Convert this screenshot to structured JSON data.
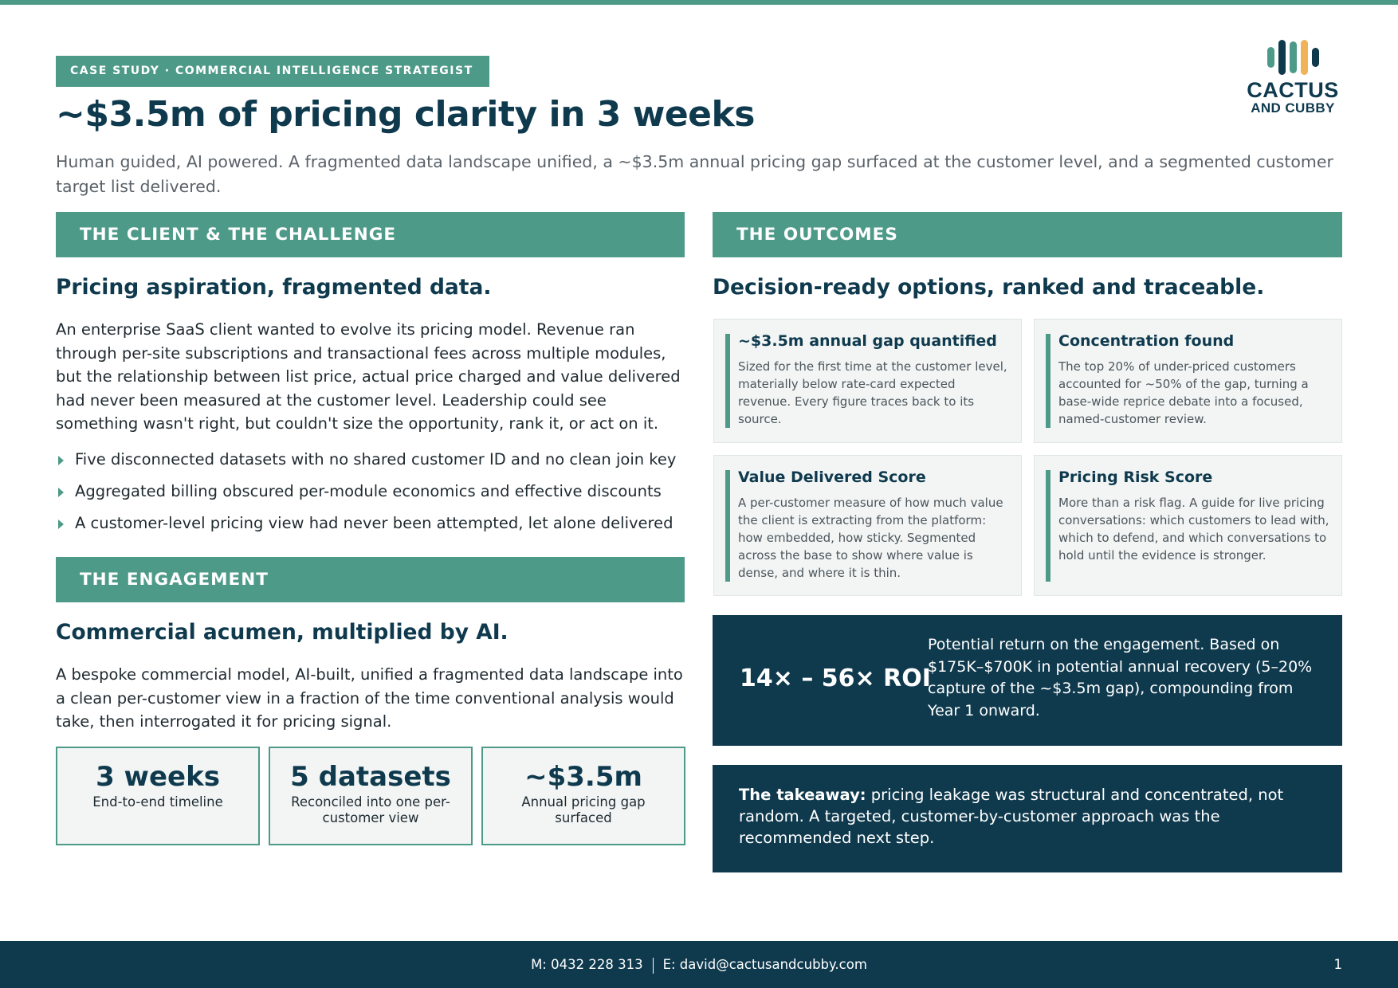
{
  "header": {
    "eyebrow": "CASE STUDY · COMMERCIAL INTELLIGENCE STRATEGIST",
    "title": "~$3.5m of pricing clarity in 3 weeks",
    "subtitle": "Human guided, AI powered. A fragmented data landscape unified, a ~$3.5m annual pricing gap surfaced at the customer level, and a segmented customer target list delivered."
  },
  "logo": {
    "line1": "CACTUS",
    "line2": "AND CUBBY",
    "colors": [
      "#4e9a88",
      "#0f3a4e",
      "#f0b35a"
    ]
  },
  "client": {
    "band": "THE CLIENT & THE CHALLENGE",
    "heading": "Pricing aspiration, fragmented data.",
    "body": "An enterprise SaaS client wanted to evolve its pricing model. Revenue ran through per-site subscriptions and transactional fees across multiple modules, but the relationship between list price, actual price charged and value delivered had never been measured at the customer level. Leadership could see something wasn't right, but couldn't size the opportunity, rank it, or act on it.",
    "bullets": [
      "Five disconnected datasets with no shared customer ID and no clean join key",
      "Aggregated billing obscured per-module economics and effective discounts",
      "A customer-level pricing view had never been attempted, let alone delivered"
    ]
  },
  "engagement": {
    "band": "THE ENGAGEMENT",
    "heading": "Commercial acumen, multiplied by AI.",
    "body": "A bespoke commercial model, AI-built, unified a fragmented data landscape into a clean per-customer view in a fraction of the time conventional analysis would take, then interrogated it for pricing signal.",
    "stats": [
      {
        "value": "3 weeks",
        "label": "End-to-end timeline"
      },
      {
        "value": "5 datasets",
        "label": "Reconciled into one per-customer view"
      },
      {
        "value": "~$3.5m",
        "label": "Annual pricing gap surfaced"
      }
    ]
  },
  "outcomes": {
    "band": "THE OUTCOMES",
    "heading": "Decision-ready options, ranked and traceable.",
    "cards": [
      {
        "title": "~$3.5m annual gap quantified",
        "body": "Sized for the first time at the customer level, materially below rate-card expected revenue. Every figure traces back to its source."
      },
      {
        "title": "Concentration found",
        "body": "The top 20% of under-priced customers accounted for ~50% of the gap, turning a base-wide reprice debate into a focused, named-customer review."
      },
      {
        "title": "Value Delivered Score",
        "body": "A per-customer measure of how much value the client is extracting from the platform: how embedded, how sticky. Segmented across the base to show where value is dense, and where it is thin."
      },
      {
        "title": "Pricing Risk Score",
        "body": "More than a risk flag. A guide for live pricing conversations: which customers to lead with, which to defend, and which conversations to hold until the evidence is stronger."
      }
    ],
    "roi": {
      "value": "14× – 56× ROI",
      "text": "Potential return on the engagement. Based on $175K–$700K in potential annual recovery (5–20% capture of the ~$3.5m gap), compounding from Year 1 onward."
    },
    "takeaway": {
      "lead": "The takeaway:",
      "text": " pricing leakage was structural and concentrated, not random. A targeted, customer-by-customer approach was the recommended next step."
    }
  },
  "footer": {
    "phone": "M: 0432 228 313",
    "email": "E: david@cactusandcubby.com",
    "page": "1"
  }
}
